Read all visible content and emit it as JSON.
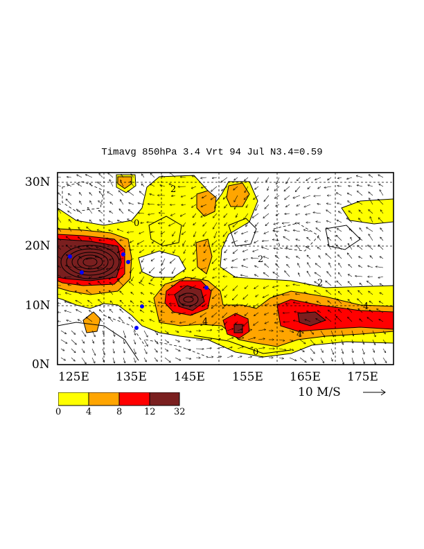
{
  "title": "Timavg 850hPa 3.4 Vrt 94 Jul N3.4=0.59",
  "lat_labels": [
    "30N",
    "20N",
    "10N",
    "0N"
  ],
  "lon_labels": [
    "125E",
    "135E",
    "145E",
    "155E",
    "165E",
    "175E"
  ],
  "contour_labels": [
    "0",
    "2",
    "4"
  ],
  "reference_vector": {
    "label": "10 M/S",
    "value": 10,
    "unit": "M/S"
  },
  "colorbar": {
    "ticks": [
      "0",
      "4",
      "8",
      "12",
      "32"
    ],
    "colors": [
      "#ffff00",
      "#ffa500",
      "#ff0000",
      "#7a1f1f"
    ]
  },
  "colors": {
    "background": "#ffffff",
    "frame": "#000000",
    "stations": "#0000ff"
  }
}
